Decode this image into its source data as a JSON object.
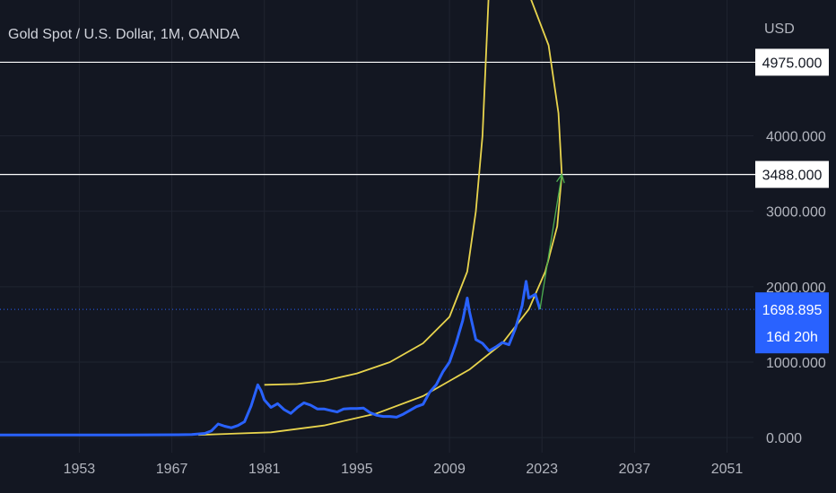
{
  "header": {
    "symbol_title": "Gold Spot / U.S. Dollar, 1M, OANDA",
    "currency": "USD"
  },
  "colors": {
    "background": "#131722",
    "grid": "#1f2430",
    "price_line": "#2962ff",
    "arc": "#e8d44d",
    "arrow": "#4caf50",
    "level_line": "#ffffff",
    "current_price_tag": "#2962ff"
  },
  "chart_data": {
    "type": "line",
    "title": "Gold Spot / U.S. Dollar, 1M, OANDA",
    "xlabel": "",
    "ylabel": "USD",
    "xlim": [
      1941,
      2055
    ],
    "ylim": [
      -200,
      5800
    ],
    "x_ticks": [
      "1953",
      "1967",
      "1981",
      "1995",
      "2009",
      "2023",
      "2037",
      "2051"
    ],
    "y_ticks": [
      "0.000",
      "1000.000",
      "2000.000",
      "3000.000",
      "4000.000"
    ],
    "grid": true,
    "series": [
      {
        "name": "",
        "x": [
          1941,
          1950,
          1960,
          1968,
          1970,
          1972,
          1973,
          1974,
          1975,
          1976,
          1977,
          1978,
          1979,
          1980,
          1980.5,
          1981,
          1982,
          1983,
          1984,
          1985,
          1986,
          1987,
          1988,
          1989,
          1990,
          1991,
          1992,
          1993,
          1994,
          1995,
          1996,
          1997,
          1998,
          1999,
          2000,
          2001,
          2002,
          2003,
          2004,
          2005,
          2006,
          2007,
          2008,
          2009,
          2010,
          2011,
          2011.7,
          2012,
          2013,
          2014,
          2015,
          2016,
          2017,
          2018,
          2019,
          2020,
          2020.6,
          2021,
          2022,
          2022.7
        ],
        "values": [
          35,
          35,
          35,
          38,
          40,
          55,
          90,
          180,
          150,
          130,
          160,
          210,
          420,
          700,
          620,
          500,
          400,
          450,
          370,
          320,
          400,
          460,
          430,
          380,
          380,
          360,
          340,
          380,
          385,
          385,
          390,
          330,
          295,
          280,
          280,
          270,
          310,
          360,
          410,
          440,
          600,
          700,
          870,
          1000,
          1250,
          1550,
          1850,
          1680,
          1300,
          1250,
          1150,
          1200,
          1260,
          1230,
          1450,
          1750,
          2070,
          1850,
          1900,
          1698.895
        ]
      }
    ],
    "levels": [
      {
        "label": "4975.000",
        "value": 4975
      },
      {
        "label": "3488.000",
        "value": 3488
      }
    ],
    "current_price": {
      "label": "1698.895",
      "value": 1698.895,
      "countdown": "16d 20h"
    },
    "annotations": [
      {
        "type": "arrow",
        "x0": 2022.7,
        "y0": 1700,
        "x1": 2026,
        "y1": 3488
      },
      {
        "type": "arc",
        "x": [
          2015,
          2014.5,
          2014,
          2013,
          2011.7,
          2009,
          2005,
          2000,
          1995,
          1990,
          1986,
          1981
        ],
        "values": [
          6000,
          5000,
          4000,
          3000,
          2200,
          1600,
          1250,
          1000,
          850,
          750,
          710,
          700
        ]
      },
      {
        "type": "arc",
        "x": [
          2020.5,
          2024,
          2025.5,
          2026,
          2025.3,
          2023.5,
          2021,
          2017,
          2012,
          2005,
          1998,
          1990,
          1982,
          1971
        ],
        "values": [
          6000,
          5200,
          4300,
          3488,
          2800,
          2200,
          1700,
          1250,
          900,
          550,
          320,
          160,
          70,
          35
        ]
      }
    ]
  }
}
